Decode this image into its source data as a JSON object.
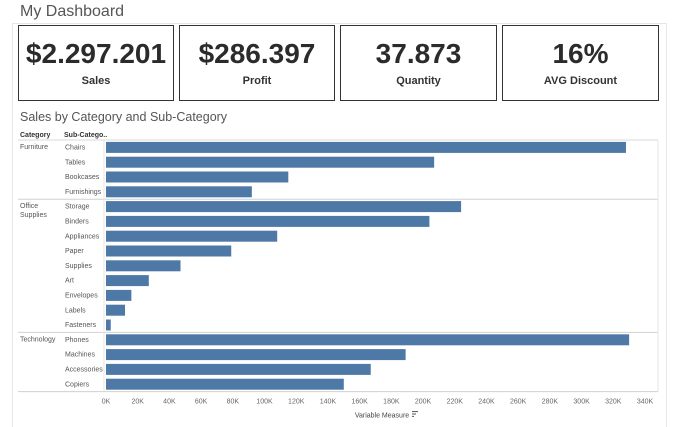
{
  "dashboard": {
    "title": "My Dashboard"
  },
  "kpis": [
    {
      "value": "$2.297.201",
      "label": "Sales"
    },
    {
      "value": "$286.397",
      "label": "Profit"
    },
    {
      "value": "37.873",
      "label": "Quantity"
    },
    {
      "value": "16%",
      "label": "AVG Discount"
    }
  ],
  "chart_section": {
    "title": "Sales by Category and Sub-Category",
    "col_category": "Category",
    "col_subcategory": "Sub-Catego.."
  },
  "chart_data": {
    "type": "bar",
    "orientation": "horizontal",
    "xlabel": "Variable Measure",
    "xlim": [
      0,
      340000
    ],
    "x_ticks": [
      "0K",
      "20K",
      "40K",
      "60K",
      "80K",
      "100K",
      "120K",
      "140K",
      "160K",
      "180K",
      "200K",
      "220K",
      "240K",
      "260K",
      "280K",
      "300K",
      "320K",
      "340K"
    ],
    "bar_color": "#4e79a7",
    "groups": [
      {
        "category": "Furniture",
        "items": [
          {
            "name": "Chairs",
            "value": 328000
          },
          {
            "name": "Tables",
            "value": 207000
          },
          {
            "name": "Bookcases",
            "value": 115000
          },
          {
            "name": "Furnishings",
            "value": 92000
          }
        ]
      },
      {
        "category": "Office Supplies",
        "items": [
          {
            "name": "Storage",
            "value": 224000
          },
          {
            "name": "Binders",
            "value": 204000
          },
          {
            "name": "Appliances",
            "value": 108000
          },
          {
            "name": "Paper",
            "value": 79000
          },
          {
            "name": "Supplies",
            "value": 47000
          },
          {
            "name": "Art",
            "value": 27000
          },
          {
            "name": "Envelopes",
            "value": 16000
          },
          {
            "name": "Labels",
            "value": 12000
          },
          {
            "name": "Fasteners",
            "value": 3000
          }
        ]
      },
      {
        "category": "Technology",
        "items": [
          {
            "name": "Phones",
            "value": 330000
          },
          {
            "name": "Machines",
            "value": 189000
          },
          {
            "name": "Accessories",
            "value": 167000
          },
          {
            "name": "Copiers",
            "value": 150000
          }
        ]
      }
    ]
  }
}
